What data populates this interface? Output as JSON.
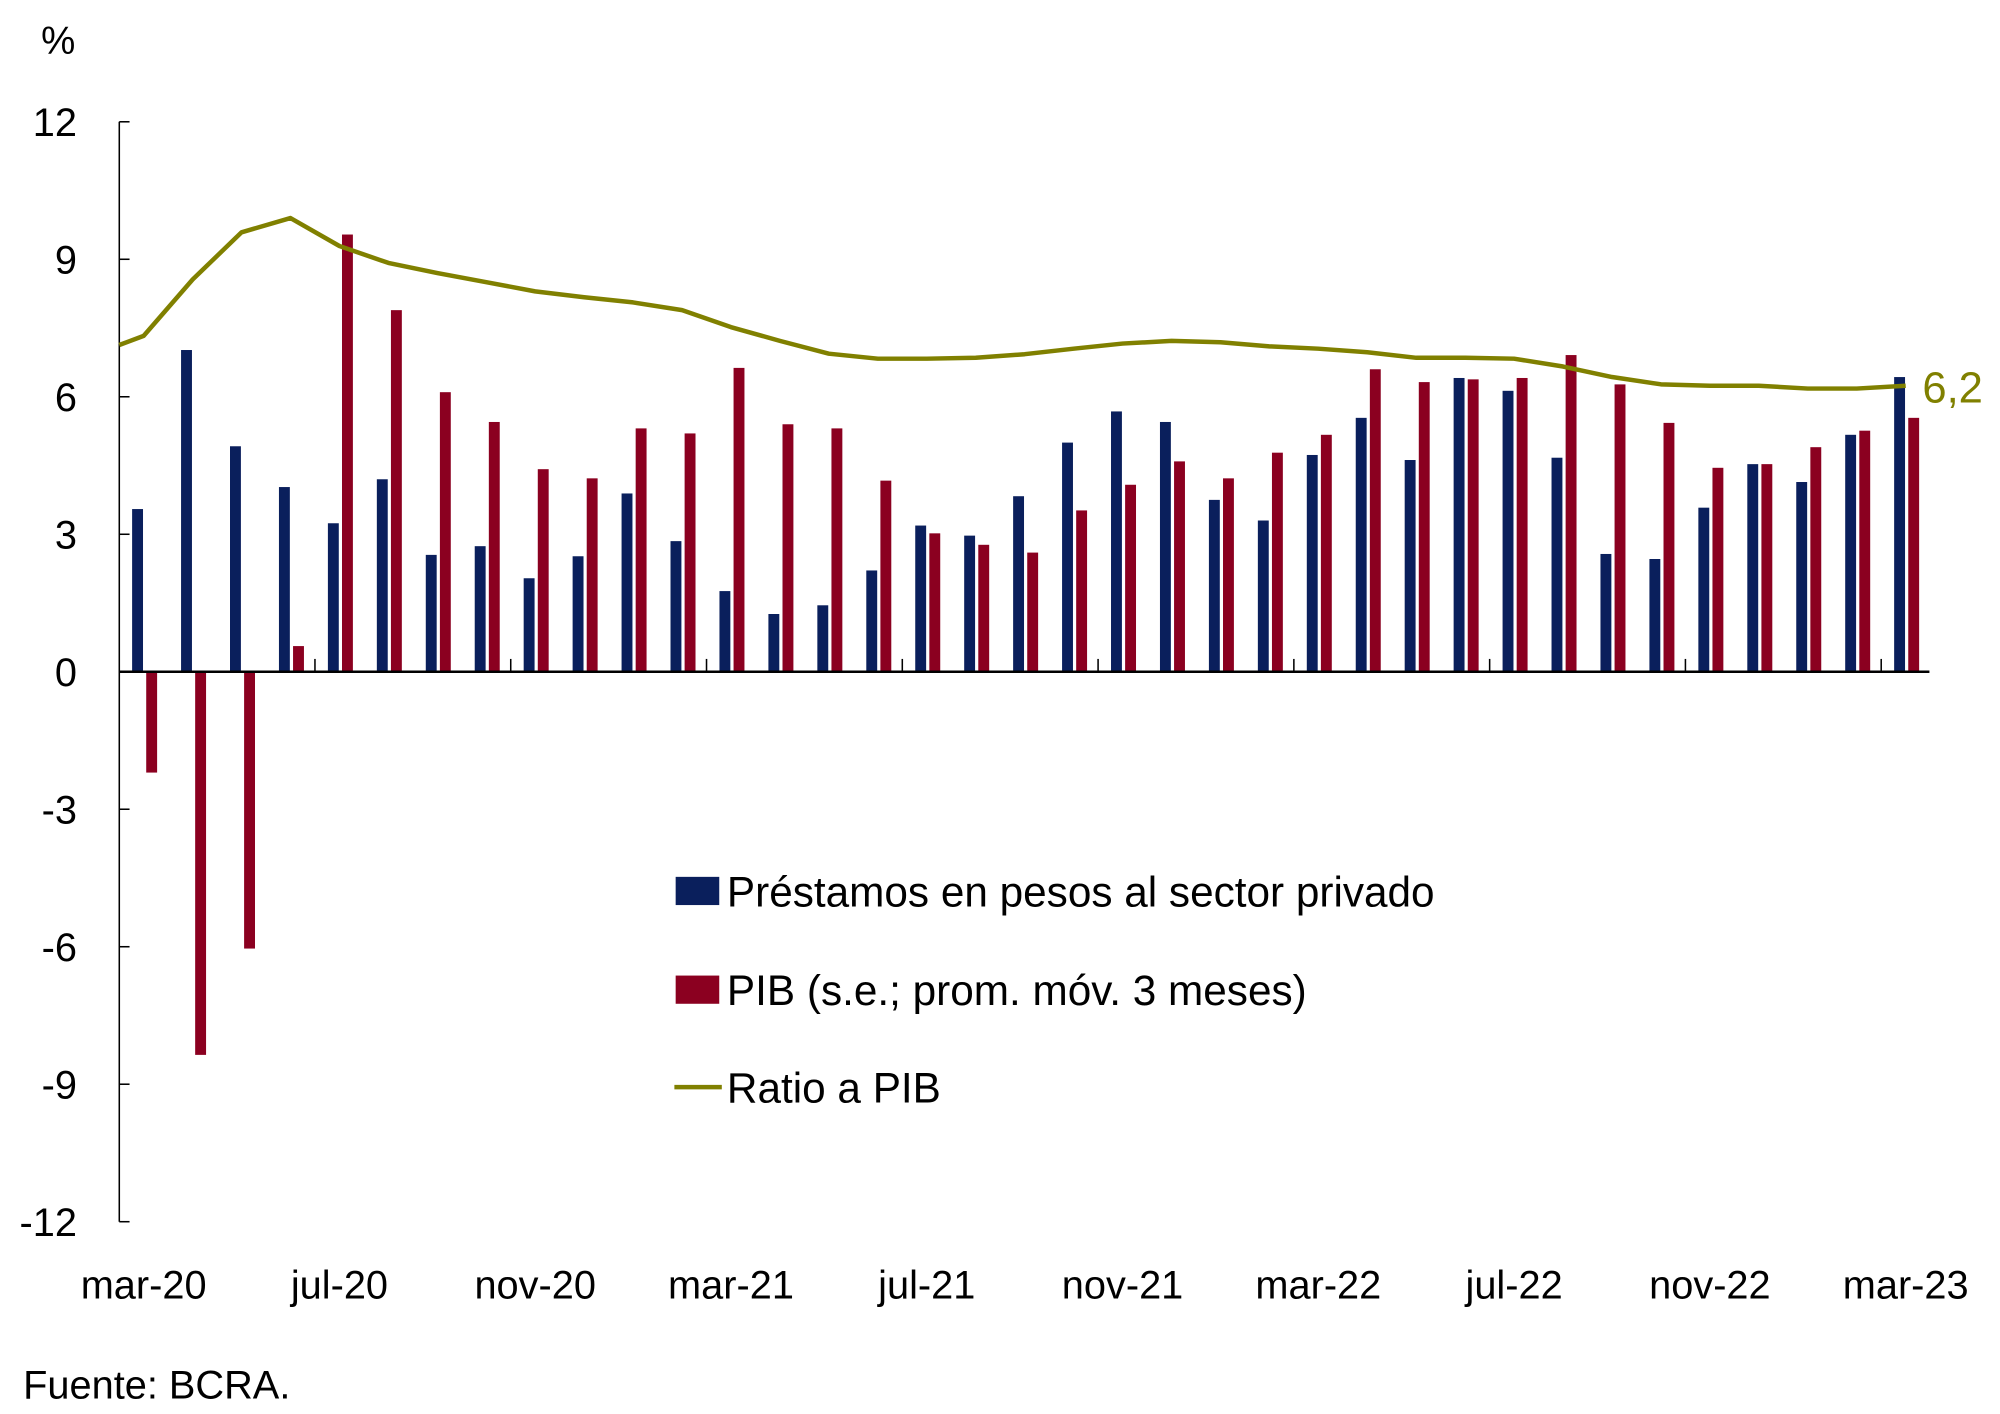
{
  "chart_data": {
    "type": "bar",
    "unit_label": "%",
    "source": "Fuente: BCRA.",
    "categories": [
      "mar-20",
      "abr-20",
      "may-20",
      "jun-20",
      "jul-20",
      "ago-20",
      "sep-20",
      "oct-20",
      "nov-20",
      "dic-20",
      "ene-21",
      "feb-21",
      "mar-21",
      "abr-21",
      "may-21",
      "jun-21",
      "jul-21",
      "ago-21",
      "sep-21",
      "oct-21",
      "nov-21",
      "dic-21",
      "ene-22",
      "feb-22",
      "mar-22",
      "abr-22",
      "may-22",
      "jun-22",
      "jul-22",
      "ago-22",
      "sep-22",
      "oct-22",
      "nov-22",
      "dic-22",
      "ene-23",
      "feb-23",
      "mar-23"
    ],
    "x_tick_labels": [
      "mar-20",
      "jul-20",
      "nov-20",
      "mar-21",
      "jul-21",
      "nov-21",
      "mar-22",
      "jul-22",
      "nov-22",
      "mar-23"
    ],
    "ylim": [
      -12,
      12
    ],
    "y_ticks": [
      12,
      9,
      6,
      3,
      0,
      -3,
      -6,
      -9,
      -12
    ],
    "grid": false,
    "legend_position": "center",
    "series": [
      {
        "name": "Préstamos en pesos al sector privado",
        "kind": "bar",
        "color": "#0a1f5c",
        "values": [
          3.55,
          7.02,
          4.92,
          4.03,
          3.24,
          4.2,
          2.55,
          2.74,
          2.04,
          2.52,
          3.89,
          2.85,
          1.76,
          1.26,
          1.45,
          2.21,
          3.19,
          2.97,
          3.83,
          5.0,
          5.68,
          5.45,
          3.75,
          3.3,
          4.73,
          5.54,
          4.62,
          6.41,
          6.13,
          4.67,
          2.57,
          2.46,
          3.58,
          4.53,
          4.14,
          5.17,
          6.43
        ]
      },
      {
        "name": "PIB (s.e.; prom. móv. 3 meses)",
        "kind": "bar",
        "color": "#8b0020",
        "values": [
          -2.2,
          -8.36,
          -6.04,
          0.56,
          9.54,
          7.89,
          6.1,
          5.45,
          4.42,
          4.22,
          5.31,
          5.2,
          6.63,
          5.4,
          5.31,
          4.17,
          3.02,
          2.77,
          2.6,
          3.52,
          4.08,
          4.59,
          4.22,
          4.78,
          5.17,
          6.6,
          6.32,
          6.38,
          6.41,
          6.91,
          6.27,
          5.43,
          4.45,
          4.53,
          4.9,
          5.26,
          5.54
        ]
      },
      {
        "name": "Ratio a PIB",
        "kind": "line",
        "color": "#808000",
        "values": [
          7.33,
          8.56,
          9.59,
          9.9,
          9.29,
          8.92,
          8.7,
          8.5,
          8.3,
          8.17,
          8.06,
          7.89,
          7.52,
          7.22,
          6.94,
          6.83,
          6.83,
          6.85,
          6.93,
          7.05,
          7.16,
          7.22,
          7.19,
          7.1,
          7.05,
          6.97,
          6.85,
          6.85,
          6.83,
          6.66,
          6.43,
          6.27,
          6.24,
          6.24,
          6.18,
          6.18,
          6.24
        ]
      }
    ],
    "annotations": [
      {
        "text": "6,2",
        "series": "Ratio a PIB",
        "category": "mar-23"
      }
    ]
  }
}
